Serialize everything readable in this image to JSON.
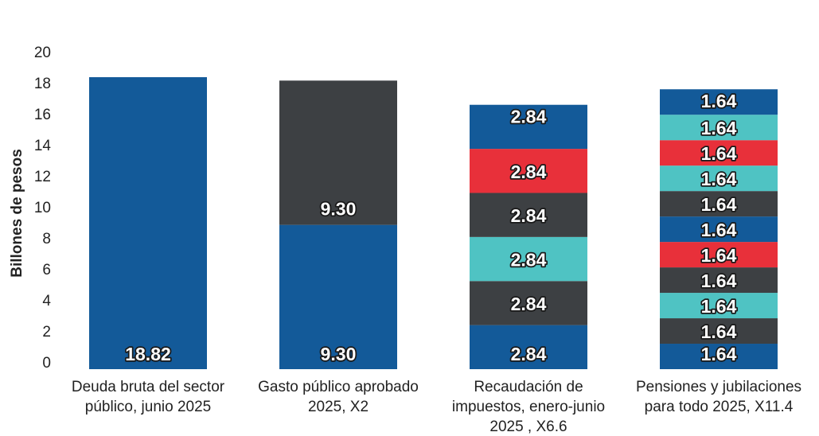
{
  "chart_data": {
    "type": "bar",
    "stacked": true,
    "title": "",
    "xlabel": "",
    "ylabel": "Billones de pesos",
    "ylim": [
      0,
      20
    ],
    "yticks": [
      0,
      2,
      4,
      6,
      8,
      10,
      12,
      14,
      16,
      18,
      20
    ],
    "grid": false,
    "categories": [
      [
        "Deuda bruta del sector",
        "público, junio 2025"
      ],
      [
        "Gasto público aprobado",
        "2025, X2"
      ],
      [
        "Recaudación de",
        "impuestos, enero-junio",
        "2025 , X6.6"
      ],
      [
        "Pensiones y jubilaciones",
        "para todo 2025, X11.4"
      ]
    ],
    "colors": {
      "blue": "#135a99",
      "dark": "#3d4043",
      "teal": "#4fc3c3",
      "red": "#e8303a"
    },
    "stacks": [
      {
        "segments": [
          {
            "value": 18.82,
            "color": "blue",
            "label": "18.82"
          }
        ]
      },
      {
        "segments": [
          {
            "value": 9.3,
            "color": "blue",
            "label": "9.30"
          },
          {
            "value": 9.3,
            "color": "dark",
            "label": "9.30"
          }
        ]
      },
      {
        "segments": [
          {
            "value": 2.84,
            "color": "blue",
            "label": "2.84"
          },
          {
            "value": 2.84,
            "color": "dark",
            "label": "2.84"
          },
          {
            "value": 2.84,
            "color": "teal",
            "label": "2.84"
          },
          {
            "value": 2.84,
            "color": "dark",
            "label": "2.84"
          },
          {
            "value": 2.84,
            "color": "red",
            "label": "2.84"
          },
          {
            "value": 2.84,
            "color": "blue",
            "label": "2.84"
          }
        ]
      },
      {
        "segments": [
          {
            "value": 1.64,
            "color": "blue",
            "label": "1.64"
          },
          {
            "value": 1.64,
            "color": "dark",
            "label": "1.64"
          },
          {
            "value": 1.64,
            "color": "teal",
            "label": "1.64"
          },
          {
            "value": 1.64,
            "color": "dark",
            "label": "1.64"
          },
          {
            "value": 1.64,
            "color": "red",
            "label": "1.64"
          },
          {
            "value": 1.64,
            "color": "blue",
            "label": "1.64"
          },
          {
            "value": 1.64,
            "color": "dark",
            "label": "1.64"
          },
          {
            "value": 1.64,
            "color": "teal",
            "label": "1.64"
          },
          {
            "value": 1.64,
            "color": "red",
            "label": "1.64"
          },
          {
            "value": 1.64,
            "color": "teal",
            "label": "1.64"
          },
          {
            "value": 1.64,
            "color": "blue",
            "label": "1.64"
          }
        ]
      }
    ]
  }
}
